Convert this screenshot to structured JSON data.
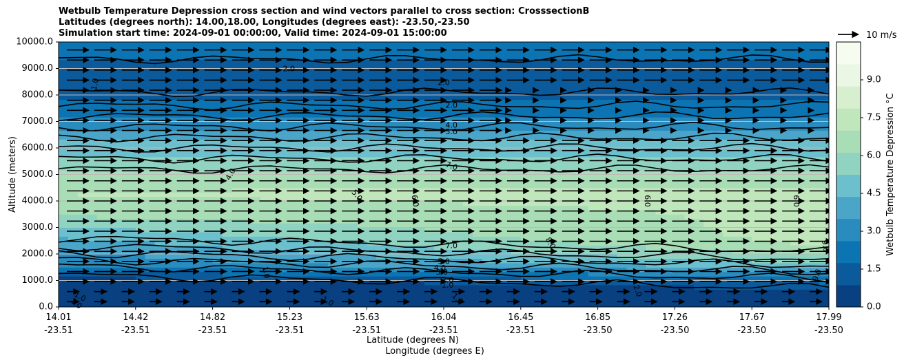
{
  "title": {
    "line1": "Wetbulb Temperature Depression cross section and wind vectors parallel to cross section: CrosssectionB",
    "line2": "Latitudes (degrees north): 14.00,18.00, Longitudes (degrees east): -23.50,-23.50",
    "line3": "Simulation start time: 2024-09-01 00:00:00, Valid time: 2024-09-01 15:00:00"
  },
  "chart_data": {
    "type": "heatmap",
    "subtype": "filled contour cross-section with line contours and wind vectors",
    "ylabel": "Altitude (meters)",
    "xlabel_lat": "Latitude (degrees N)",
    "xlabel_lon": "Longitude (degrees E)",
    "ylim": [
      0,
      10000
    ],
    "yticks": [
      "0.0",
      "1000.0",
      "2000.0",
      "3000.0",
      "4000.0",
      "5000.0",
      "6000.0",
      "7000.0",
      "8000.0",
      "9000.0",
      "10000.0"
    ],
    "grid": "horizontal",
    "x_lat_ticks": [
      "14.01",
      "14.42",
      "14.82",
      "15.23",
      "15.63",
      "16.04",
      "16.45",
      "16.85",
      "17.26",
      "17.67",
      "17.99"
    ],
    "x_lon_ticks": [
      "-23.51",
      "-23.51",
      "-23.51",
      "-23.51",
      "-23.51",
      "-23.51",
      "-23.51",
      "-23.50",
      "-23.50",
      "-23.50",
      "-23.50"
    ],
    "colorbar": {
      "label": "Wetbulb Temperature Depression °C",
      "range": [
        0,
        10.5
      ],
      "ticks": [
        "0.0",
        "1.5",
        "3.0",
        "4.5",
        "6.0",
        "7.5",
        "9.0"
      ],
      "colors": [
        "#084081",
        "#0a5a9c",
        "#0c74b2",
        "#2a8cbe",
        "#4aa5c9",
        "#6cbfcc",
        "#8fd3c0",
        "#a9ddb6",
        "#c0e6bb",
        "#d7efcf",
        "#eaf7e4",
        "#f7fcf0"
      ]
    },
    "wind_reference": {
      "label": "10 m/s",
      "speed_ms": 10
    },
    "contour_labels": [
      {
        "text": "1.0",
        "lat": 14.2,
        "alt": 8400,
        "rot": -80
      },
      {
        "text": "2.0",
        "lat": 15.2,
        "alt": 8980,
        "rot": 0
      },
      {
        "text": "2.0",
        "lat": 16.0,
        "alt": 8450,
        "rot": 0
      },
      {
        "text": "2.0",
        "lat": 16.04,
        "alt": 7600,
        "rot": 0
      },
      {
        "text": "4.0",
        "lat": 16.04,
        "alt": 6850,
        "rot": 0
      },
      {
        "text": "5.0",
        "lat": 16.04,
        "alt": 6600,
        "rot": 0
      },
      {
        "text": "4.0",
        "lat": 14.9,
        "alt": 5000,
        "rot": -60
      },
      {
        "text": "7.0",
        "lat": 16.04,
        "alt": 5300,
        "rot": 20
      },
      {
        "text": "5.0",
        "lat": 15.55,
        "alt": 4200,
        "rot": 50
      },
      {
        "text": "6.0",
        "lat": 15.85,
        "alt": 4000,
        "rot": 80
      },
      {
        "text": "6.0",
        "lat": 17.05,
        "alt": 4000,
        "rot": 90
      },
      {
        "text": "6.0",
        "lat": 17.82,
        "alt": 4000,
        "rot": 90
      },
      {
        "text": "7.0",
        "lat": 16.04,
        "alt": 2300,
        "rot": 0
      },
      {
        "text": "8.0",
        "lat": 16.55,
        "alt": 2400,
        "rot": 60
      },
      {
        "text": "9.0",
        "lat": 17.97,
        "alt": 2300,
        "rot": 80
      },
      {
        "text": "5.0",
        "lat": 16.0,
        "alt": 1700,
        "rot": 0
      },
      {
        "text": "4.0",
        "lat": 15.98,
        "alt": 1450,
        "rot": 0
      },
      {
        "text": "3.0",
        "lat": 15.99,
        "alt": 1300,
        "rot": 0
      },
      {
        "text": "2.0",
        "lat": 16.02,
        "alt": 1000,
        "rot": 0
      },
      {
        "text": "1.0",
        "lat": 16.02,
        "alt": 800,
        "rot": 0
      },
      {
        "text": "1.0",
        "lat": 15.08,
        "alt": 1300,
        "rot": 80
      },
      {
        "text": "9.0",
        "lat": 17.93,
        "alt": 1200,
        "rot": -70
      },
      {
        "text": "2.0",
        "lat": 17.0,
        "alt": 600,
        "rot": 70
      },
      {
        "text": "1.0",
        "lat": 15.4,
        "alt": 200,
        "rot": 30
      },
      {
        "text": "1.0",
        "lat": 16.07,
        "alt": 300,
        "rot": 45
      },
      {
        "text": "1.0",
        "lat": 14.12,
        "alt": 380,
        "rot": 30
      },
      {
        "text": "1.0",
        "lat": 14.1,
        "alt": 120,
        "rot": 40
      }
    ]
  }
}
